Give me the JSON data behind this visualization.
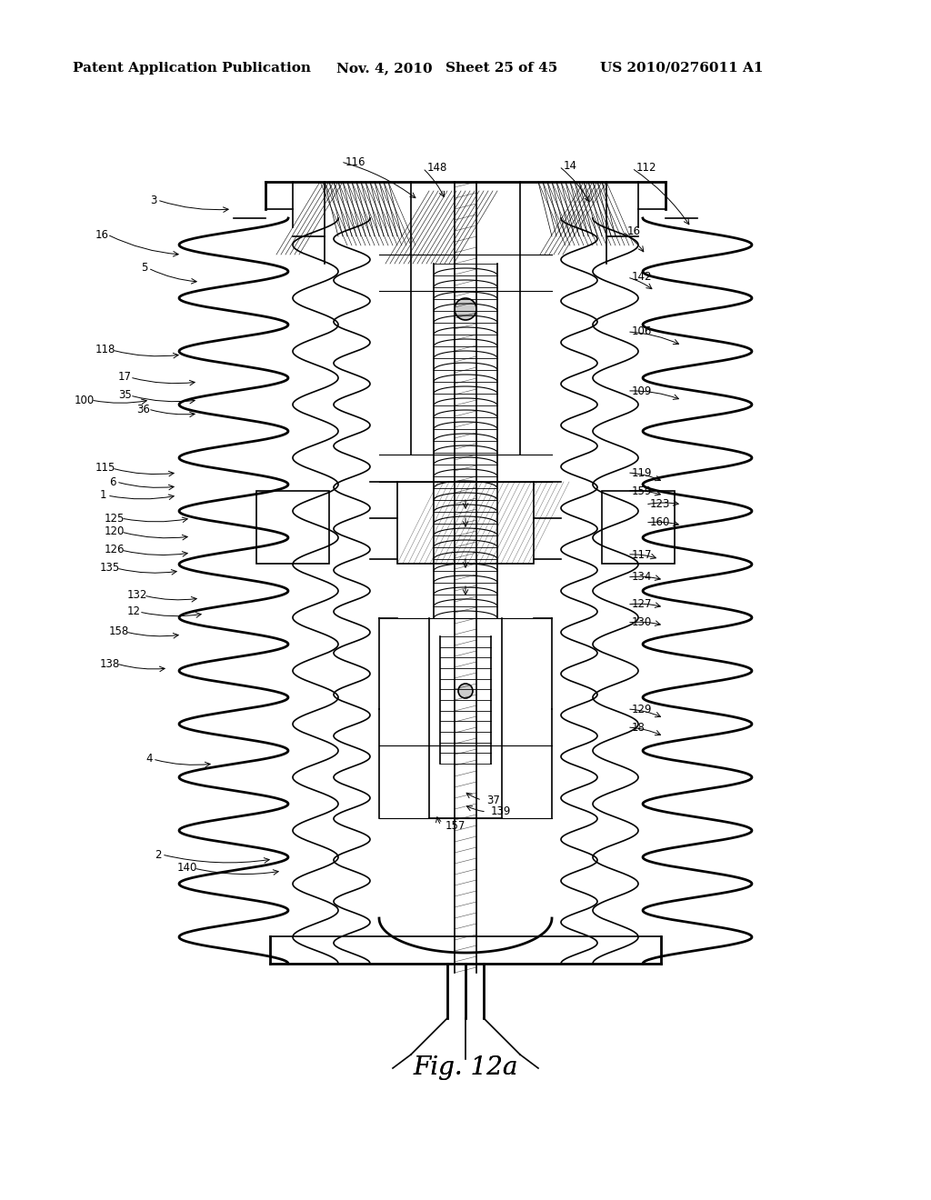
{
  "bg_color": "#ffffff",
  "header_text": "Patent Application Publication",
  "header_date": "Nov. 4, 2010",
  "header_sheet": "Sheet 25 of 45",
  "header_patent": "US 2010/0276011 A1",
  "figure_label": "Fig. 12a",
  "title_fontsize": 11,
  "fig_label_fontsize": 20
}
